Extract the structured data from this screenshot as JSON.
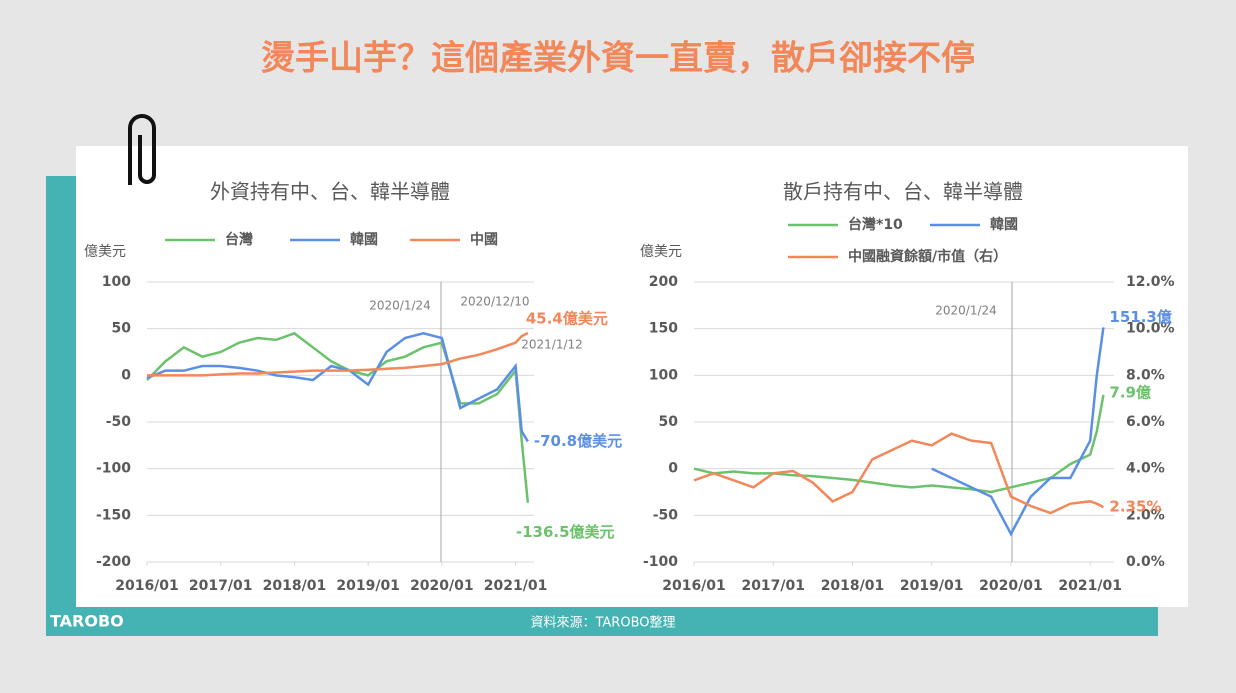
{
  "header": {
    "title": "燙手山芋？這個產業外資一直賣，散戶卻接不停"
  },
  "footer": {
    "source": "資料來源：TAROBO整理",
    "logo": "TAROBO"
  },
  "chart_data": [
    {
      "type": "line",
      "title": "外資持有中、台、韓半導體",
      "y_label": "億美元",
      "x": [
        "2016/01",
        "2016/04",
        "2016/07",
        "2016/10",
        "2017/01",
        "2017/04",
        "2017/07",
        "2017/10",
        "2018/01",
        "2018/04",
        "2018/07",
        "2018/10",
        "2019/01",
        "2019/04",
        "2019/07",
        "2019/10",
        "2020/01",
        "2020/04",
        "2020/07",
        "2020/10",
        "2021/01",
        "2021/02",
        "2021/03"
      ],
      "xlim": [
        "2016/01",
        "2021/04"
      ],
      "xticks": [
        "2016/01",
        "2017/01",
        "2018/01",
        "2019/01",
        "2020/01",
        "2021/01"
      ],
      "ylim": [
        -200,
        100
      ],
      "yticks": [
        -200,
        -150,
        -100,
        -50,
        0,
        50,
        100
      ],
      "annotations": [
        "2020/1/24",
        "2020/12/10",
        "2021/1/12"
      ],
      "series": [
        {
          "name": "台灣",
          "color": "#6cc26c",
          "end_label": "-136.5億美元",
          "values": [
            -5,
            15,
            30,
            20,
            25,
            35,
            40,
            38,
            45,
            30,
            15,
            5,
            0,
            15,
            20,
            30,
            35,
            -30,
            -30,
            -20,
            5,
            -70,
            -136.5
          ]
        },
        {
          "name": "韓國",
          "color": "#5b8fe6",
          "end_label": "-70.8億美元",
          "values": [
            -3,
            5,
            5,
            10,
            10,
            8,
            5,
            0,
            -2,
            -5,
            10,
            5,
            -10,
            25,
            40,
            45,
            40,
            -35,
            -25,
            -15,
            10,
            -60,
            -70.8
          ]
        },
        {
          "name": "中國",
          "color": "#f2875a",
          "end_label": "45.4億美元",
          "values": [
            0,
            0,
            0,
            0,
            1,
            2,
            2,
            3,
            4,
            5,
            5,
            5,
            6,
            7,
            8,
            10,
            12,
            18,
            22,
            28,
            35,
            42,
            45.4
          ]
        }
      ]
    },
    {
      "type": "line",
      "title": "散戶持有中、台、韓半導體",
      "y_label": "億美元",
      "x": [
        "2016/01",
        "2016/04",
        "2016/07",
        "2016/10",
        "2017/01",
        "2017/04",
        "2017/07",
        "2017/10",
        "2018/01",
        "2018/04",
        "2018/07",
        "2018/10",
        "2019/01",
        "2019/04",
        "2019/07",
        "2019/10",
        "2020/01",
        "2020/04",
        "2020/07",
        "2020/10",
        "2021/01",
        "2021/02",
        "2021/03"
      ],
      "xlim": [
        "2016/01",
        "2021/04"
      ],
      "xticks": [
        "2016/01",
        "2017/01",
        "2018/01",
        "2019/01",
        "2020/01",
        "2021/01"
      ],
      "ylim": [
        -100,
        200
      ],
      "yticks": [
        -100,
        -50,
        0,
        50,
        100,
        150,
        200
      ],
      "y2lim": [
        0,
        12
      ],
      "y2ticks": [
        {
          "value": 0,
          "label": "0.0%"
        },
        {
          "value": 2,
          "label": "2.0%"
        },
        {
          "value": 4,
          "label": "4.0%"
        },
        {
          "value": 6,
          "label": "6.0%"
        },
        {
          "value": 8,
          "label": "8.0%"
        },
        {
          "value": 10,
          "label": "10.0%"
        },
        {
          "value": 12,
          "label": "12.0%"
        }
      ],
      "annotations": [
        "2020/1/24"
      ],
      "series": [
        {
          "name": "台灣*10",
          "color": "#6cc26c",
          "end_label": "7.9億",
          "values": [
            0,
            -5,
            -3,
            -5,
            -5,
            -7,
            -8,
            -10,
            -12,
            -15,
            -18,
            -20,
            -18,
            -20,
            -22,
            -25,
            -20,
            -15,
            -10,
            5,
            15,
            40,
            79
          ]
        },
        {
          "name": "韓國",
          "color": "#5b8fe6",
          "end_label": "151.3億",
          "values": [
            null,
            null,
            null,
            null,
            null,
            null,
            null,
            null,
            null,
            null,
            null,
            null,
            0,
            -10,
            -20,
            -30,
            -70,
            -30,
            -10,
            -10,
            30,
            100,
            151.3
          ]
        },
        {
          "name": "中國融資餘額/市值（右）",
          "color": "#f2875a",
          "axis": "y2",
          "end_label": "2.35%",
          "values": [
            3.5,
            3.8,
            3.5,
            3.2,
            3.8,
            3.9,
            3.4,
            2.6,
            3.0,
            4.4,
            4.8,
            5.2,
            5.0,
            5.5,
            5.2,
            5.1,
            2.8,
            2.4,
            2.1,
            2.5,
            2.6,
            2.5,
            2.35
          ]
        }
      ]
    }
  ]
}
